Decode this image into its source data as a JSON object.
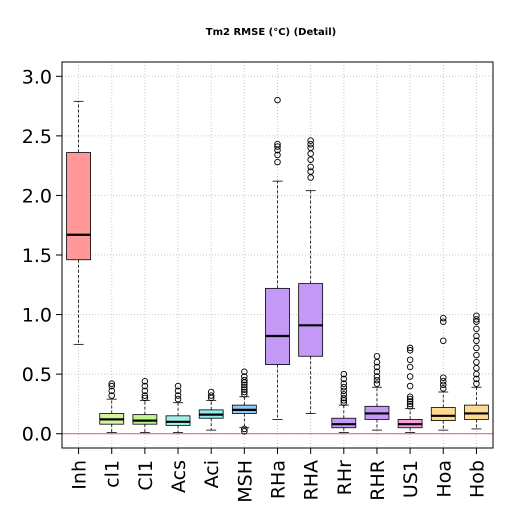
{
  "chart_data": {
    "type": "box",
    "title": "Tm2 RMSE (°C) (Detail)",
    "xlabel": "",
    "ylabel": "",
    "ylim": [
      -0.12,
      3.12
    ],
    "yticks": [
      0.0,
      0.5,
      1.0,
      1.5,
      2.0,
      2.5,
      3.0
    ],
    "ytick_labels": [
      "0.0",
      "0.5",
      "1.0",
      "1.5",
      "2.0",
      "2.5",
      "3.0"
    ],
    "grid": true,
    "reference_line": 0.0,
    "categories": [
      "Inh",
      "cl1",
      "Cl1",
      "Acs",
      "Aci",
      "MSH",
      "RHa",
      "RHA",
      "RHr",
      "RHR",
      "US1",
      "Hoa",
      "Hob"
    ],
    "boxes": [
      {
        "name": "Inh",
        "color": "#ff9999",
        "whisker_low": 0.75,
        "q1": 1.46,
        "median": 1.67,
        "q3": 2.36,
        "whisker_high": 2.79,
        "outliers": []
      },
      {
        "name": "cl1",
        "color": "#d4f5a0",
        "whisker_low": 0.01,
        "q1": 0.08,
        "median": 0.12,
        "q3": 0.17,
        "whisker_high": 0.29,
        "outliers": [
          0.32,
          0.36,
          0.4,
          0.42
        ]
      },
      {
        "name": "Cl1",
        "color": "#bff58f",
        "whisker_low": 0.01,
        "q1": 0.08,
        "median": 0.11,
        "q3": 0.16,
        "whisker_high": 0.28,
        "outliers": [
          0.3,
          0.32,
          0.36,
          0.4,
          0.44
        ]
      },
      {
        "name": "Acs",
        "color": "#9ff0e6",
        "whisker_low": 0.01,
        "q1": 0.07,
        "median": 0.1,
        "q3": 0.15,
        "whisker_high": 0.26,
        "outliers": [
          0.29,
          0.32,
          0.36,
          0.4
        ]
      },
      {
        "name": "Aci",
        "color": "#8feef0",
        "whisker_low": 0.03,
        "q1": 0.13,
        "median": 0.16,
        "q3": 0.2,
        "whisker_high": 0.28,
        "outliers": [
          0.3,
          0.32,
          0.35
        ]
      },
      {
        "name": "MSH",
        "color": "#8fc8f5",
        "whisker_low": 0.05,
        "q1": 0.17,
        "median": 0.2,
        "q3": 0.24,
        "whisker_high": 0.31,
        "outliers": [
          0.02,
          0.04,
          0.33,
          0.35,
          0.37,
          0.39,
          0.41,
          0.43,
          0.45,
          0.48,
          0.52
        ]
      },
      {
        "name": "RHa",
        "color": "#c499f5",
        "whisker_low": 0.12,
        "q1": 0.58,
        "median": 0.82,
        "q3": 1.22,
        "whisker_high": 2.12,
        "outliers": [
          2.28,
          2.34,
          2.38,
          2.41,
          2.43,
          2.8
        ]
      },
      {
        "name": "RHA",
        "color": "#c499f5",
        "whisker_low": 0.17,
        "q1": 0.65,
        "median": 0.91,
        "q3": 1.26,
        "whisker_high": 2.04,
        "outliers": [
          2.15,
          2.2,
          2.24,
          2.3,
          2.35,
          2.4,
          2.43,
          2.46
        ]
      },
      {
        "name": "RHr",
        "color": "#c499f5",
        "whisker_low": 0.01,
        "q1": 0.05,
        "median": 0.08,
        "q3": 0.13,
        "whisker_high": 0.24,
        "outliers": [
          0.26,
          0.28,
          0.3,
          0.33,
          0.36,
          0.39,
          0.42,
          0.46,
          0.5
        ]
      },
      {
        "name": "RHR",
        "color": "#c499f5",
        "whisker_low": 0.03,
        "q1": 0.12,
        "median": 0.17,
        "q3": 0.23,
        "whisker_high": 0.39,
        "outliers": [
          0.42,
          0.45,
          0.48,
          0.52,
          0.56,
          0.6,
          0.65
        ]
      },
      {
        "name": "US1",
        "color": "#f59fdc",
        "whisker_low": 0.01,
        "q1": 0.05,
        "median": 0.08,
        "q3": 0.12,
        "whisker_high": 0.21,
        "outliers": [
          0.23,
          0.25,
          0.27,
          0.29,
          0.31,
          0.4,
          0.48,
          0.56,
          0.62,
          0.7,
          0.72
        ]
      },
      {
        "name": "Hoa",
        "color": "#ffd98f",
        "whisker_low": 0.03,
        "q1": 0.11,
        "median": 0.15,
        "q3": 0.22,
        "whisker_high": 0.35,
        "outliers": [
          0.38,
          0.41,
          0.44,
          0.47,
          0.78,
          0.94,
          0.97
        ]
      },
      {
        "name": "Hob",
        "color": "#ffd98f",
        "whisker_low": 0.04,
        "q1": 0.12,
        "median": 0.17,
        "q3": 0.24,
        "whisker_high": 0.39,
        "outliers": [
          0.42,
          0.46,
          0.5,
          0.55,
          0.6,
          0.66,
          0.72,
          0.78,
          0.82,
          0.88,
          0.94,
          0.96,
          0.99
        ]
      }
    ]
  }
}
